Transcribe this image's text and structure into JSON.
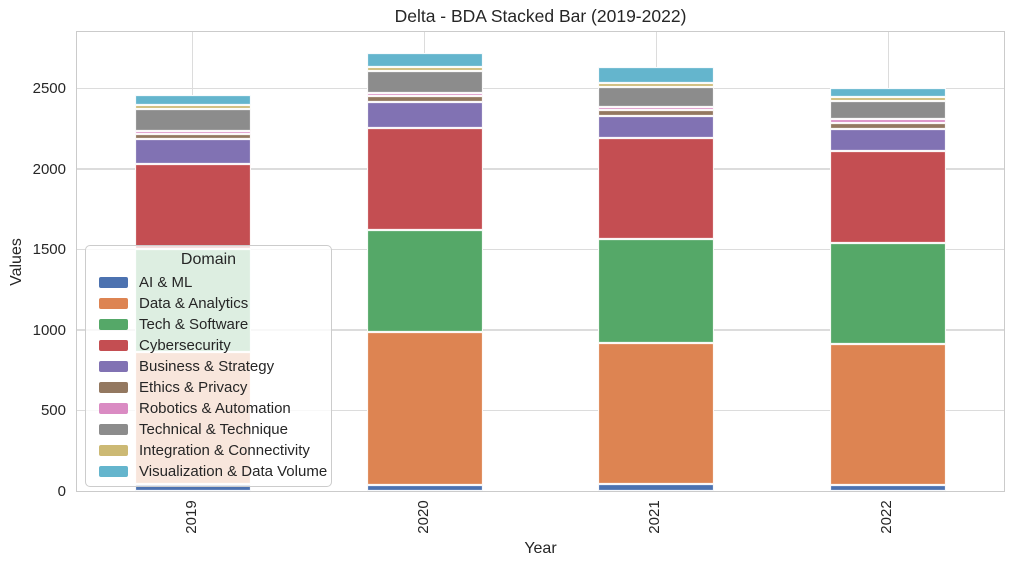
{
  "title": "Delta - BDA Stacked Bar (2019-2022)",
  "chart_data": {
    "type": "bar",
    "stacked": true,
    "title": "Delta - BDA Stacked Bar (2019-2022)",
    "xlabel": "Year",
    "ylabel": "Values",
    "categories": [
      "2019",
      "2020",
      "2021",
      "2022"
    ],
    "yticks": [
      0,
      500,
      1000,
      1500,
      2000,
      2500
    ],
    "ylim": [
      0,
      2850
    ],
    "grid": true,
    "grid_color": "#dcdcdc",
    "spine_color": "#cbcbcb",
    "text_color": "#262626",
    "legend_title": "Domain",
    "legend_position": "center-left",
    "bar_totals": [
      2459,
      2720,
      2635,
      2505
    ],
    "series": [
      {
        "name": "AI & ML",
        "color": "#4C72B0",
        "values": [
          45,
          40,
          45,
          40
        ]
      },
      {
        "name": "Data & Analytics",
        "color": "#DD8452",
        "values": [
          820,
          950,
          875,
          875
        ]
      },
      {
        "name": "Tech & Software",
        "color": "#55A868",
        "values": [
          640,
          630,
          645,
          625
        ]
      },
      {
        "name": "Cybersecurity",
        "color": "#C44E52",
        "values": [
          525,
          635,
          625,
          570
        ]
      },
      {
        "name": "Business & Strategy",
        "color": "#8172B3",
        "values": [
          155,
          160,
          140,
          140
        ]
      },
      {
        "name": "Ethics & Privacy",
        "color": "#937860",
        "values": [
          30,
          38,
          35,
          35
        ]
      },
      {
        "name": "Robotics & Automation",
        "color": "#DA8BC3",
        "values": [
          22,
          20,
          20,
          25
        ]
      },
      {
        "name": "Technical & Technique",
        "color": "#8C8C8C",
        "values": [
          135,
          135,
          125,
          110
        ]
      },
      {
        "name": "Integration & Connectivity",
        "color": "#CCB974",
        "values": [
          22,
          22,
          25,
          25
        ]
      },
      {
        "name": "Visualization & Data Volume",
        "color": "#64B5CD",
        "values": [
          65,
          90,
          100,
          60
        ]
      }
    ]
  }
}
